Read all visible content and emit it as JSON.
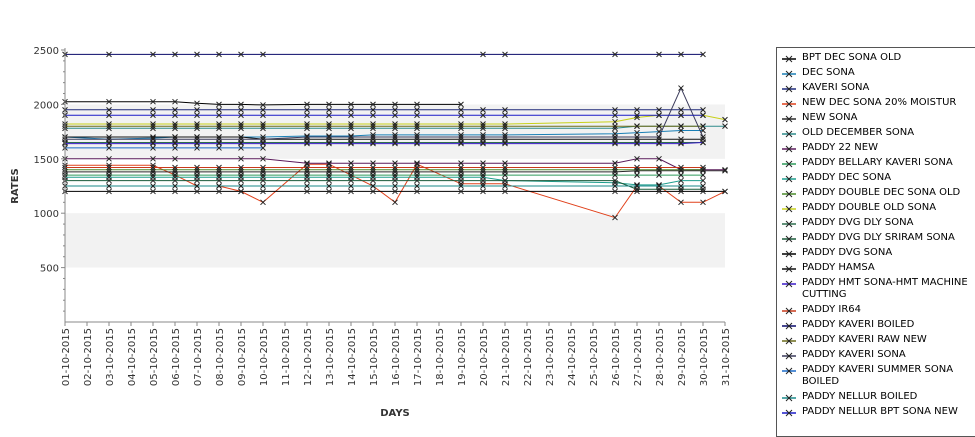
{
  "chart_data": {
    "type": "line",
    "xlabel": "DAYS",
    "ylabel": "RATES",
    "ylim": [
      0,
      2500
    ],
    "yticks": [
      500,
      1000,
      1500,
      2000,
      2500
    ],
    "bands": [
      [
        500,
        1000
      ],
      [
        1500,
        2000
      ]
    ],
    "marker": "x",
    "x": [
      "01-10-2015",
      "02-10-2015",
      "03-10-2015",
      "04-10-2015",
      "05-10-2015",
      "06-10-2015",
      "07-10-2015",
      "08-10-2015",
      "09-10-2015",
      "10-10-2015",
      "11-10-2015",
      "12-10-2015",
      "13-10-2015",
      "14-10-2015",
      "15-10-2015",
      "16-10-2015",
      "17-10-2015",
      "18-10-2015",
      "19-10-2015",
      "20-10-2015",
      "21-10-2015",
      "22-10-2015",
      "23-10-2015",
      "24-10-2015",
      "25-10-2015",
      "26-10-2015",
      "27-10-2015",
      "28-10-2015",
      "29-10-2015",
      "30-10-2015",
      "31-10-2015"
    ],
    "series": [
      {
        "name": "BPT DEC SONA OLD",
        "color": "#000000",
        "values": [
          2025,
          null,
          2025,
          null,
          2025,
          2025,
          2010,
          2000,
          2000,
          1995,
          null,
          2000,
          2000,
          2000,
          2000,
          2000,
          2000,
          null,
          2000,
          null,
          null,
          null,
          null,
          null,
          null,
          null,
          null,
          null,
          null,
          null,
          null
        ]
      },
      {
        "name": "DEC SONA",
        "color": "#1a7fb5",
        "values": [
          1700,
          null,
          1680,
          null,
          1690,
          1700,
          1700,
          1700,
          1700,
          1700,
          null,
          1710,
          1710,
          1710,
          1720,
          1720,
          1720,
          null,
          1720,
          1720,
          1720,
          null,
          null,
          null,
          null,
          1730,
          1740,
          1750,
          1760,
          1760,
          null
        ]
      },
      {
        "name": "KAVERI SONA",
        "color": "#1f2a7a",
        "values": [
          1950,
          null,
          1950,
          null,
          1950,
          1950,
          1950,
          1950,
          1950,
          1950,
          null,
          1950,
          1950,
          1950,
          1950,
          1950,
          1950,
          null,
          1950,
          1950,
          1950,
          null,
          null,
          null,
          null,
          1950,
          1950,
          1950,
          1950,
          1950,
          null
        ]
      },
      {
        "name": "NEW DEC SONA 20% MOISTUR",
        "color": "#e0401a",
        "values": [
          1440,
          null,
          1440,
          null,
          1440,
          1350,
          1250,
          1250,
          1200,
          1100,
          null,
          1450,
          1450,
          1350,
          1250,
          1100,
          1450,
          null,
          1270,
          1270,
          1270,
          null,
          null,
          null,
          null,
          960,
          1250,
          1250,
          1100,
          1100,
          1200
        ]
      },
      {
        "name": "NEW SONA",
        "color": "#2a2a2a",
        "values": [
          1380,
          null,
          1380,
          null,
          1380,
          1380,
          1380,
          1380,
          1380,
          1380,
          null,
          1380,
          1380,
          1380,
          1380,
          1380,
          1380,
          null,
          1380,
          1380,
          1380,
          null,
          null,
          null,
          null,
          1380,
          1390,
          1390,
          1390,
          1390,
          1390
        ]
      },
      {
        "name": "OLD DECEMBER SONA",
        "color": "#2e8b8b",
        "values": [
          1780,
          null,
          1780,
          null,
          1780,
          1780,
          1780,
          1780,
          1780,
          1780,
          null,
          1780,
          1780,
          1780,
          1780,
          1780,
          1780,
          null,
          1780,
          1780,
          1780,
          null,
          null,
          null,
          null,
          1780,
          1800,
          1800,
          1800,
          1800,
          1800
        ]
      },
      {
        "name": "PADDY 22 NEW",
        "color": "#5a1a5a",
        "values": [
          1500,
          null,
          1500,
          null,
          1500,
          1500,
          null,
          null,
          1500,
          1500,
          null,
          1460,
          1460,
          1460,
          1460,
          1460,
          1460,
          null,
          1460,
          1460,
          1460,
          null,
          null,
          null,
          null,
          1460,
          1500,
          1500,
          1400,
          1400,
          1400
        ]
      },
      {
        "name": "PADDY BELLARY KAVERI SONA",
        "color": "#2e9b5a",
        "values": [
          1350,
          null,
          1350,
          null,
          1350,
          1350,
          1350,
          1350,
          1350,
          1350,
          null,
          1350,
          1350,
          1350,
          1350,
          1350,
          1350,
          null,
          1350,
          1350,
          1350,
          null,
          null,
          null,
          null,
          1350,
          1350,
          1350,
          1350,
          1350,
          null
        ]
      },
      {
        "name": "PADDY DEC SONA",
        "color": "#1e9e8e",
        "values": [
          1330,
          null,
          1330,
          null,
          1330,
          1330,
          1330,
          1330,
          1330,
          1330,
          null,
          1330,
          1330,
          1330,
          1330,
          1330,
          1330,
          null,
          1330,
          1330,
          1300,
          null,
          null,
          null,
          null,
          1280,
          1260,
          1260,
          1300,
          1300,
          null
        ]
      },
      {
        "name": "PADDY DOUBLE DEC SONA OLD",
        "color": "#4a8a2a",
        "values": [
          1400,
          null,
          1400,
          null,
          1400,
          1400,
          1400,
          1400,
          1400,
          1400,
          null,
          1400,
          1400,
          1400,
          1400,
          1400,
          1400,
          null,
          1400,
          1400,
          1400,
          null,
          null,
          null,
          null,
          1400,
          1400,
          1400,
          1400,
          1400,
          null
        ]
      },
      {
        "name": "PADDY DOUBLE OLD SONA",
        "color": "#c8d01a",
        "values": [
          1820,
          null,
          1820,
          null,
          1820,
          1820,
          1820,
          1820,
          1820,
          1820,
          null,
          1820,
          1820,
          1820,
          1820,
          1820,
          1820,
          null,
          1820,
          1820,
          1820,
          null,
          null,
          null,
          null,
          1840,
          1880,
          1900,
          1900,
          1900,
          1860
        ]
      },
      {
        "name": "PADDY DVG DLY SONA",
        "color": "#2e6e4e",
        "values": [
          1650,
          null,
          1650,
          null,
          1650,
          1650,
          1650,
          1650,
          1650,
          1650,
          null,
          1650,
          1650,
          1650,
          1650,
          1650,
          1650,
          null,
          1650,
          1650,
          1650,
          null,
          null,
          null,
          null,
          1650,
          1650,
          1650,
          1650,
          1650,
          null
        ]
      },
      {
        "name": "PADDY DVG DLY SRIRAM SONA",
        "color": "#1a5a3a",
        "values": [
          1300,
          null,
          1300,
          null,
          1300,
          1300,
          1300,
          1300,
          1300,
          1300,
          null,
          1300,
          1300,
          1300,
          1300,
          1300,
          1300,
          null,
          1300,
          1300,
          1300,
          null,
          null,
          null,
          null,
          1300,
          1220,
          1220,
          1220,
          1220,
          null
        ]
      },
      {
        "name": "PADDY DVG SONA",
        "color": "#000000",
        "values": [
          1200,
          null,
          1200,
          null,
          1200,
          1200,
          1200,
          1200,
          1200,
          1200,
          null,
          1200,
          1200,
          1200,
          1200,
          1200,
          1200,
          null,
          1200,
          1200,
          1200,
          null,
          null,
          null,
          null,
          1200,
          1200,
          1200,
          1200,
          1200,
          1200
        ]
      },
      {
        "name": "PADDY HAMSA",
        "color": "#111111",
        "values": [
          1700,
          null,
          1700,
          null,
          1700,
          1700,
          1700,
          1700,
          1700,
          1680,
          null,
          1680,
          1680,
          1680,
          1680,
          1680,
          1680,
          null,
          1680,
          1680,
          1680,
          null,
          null,
          null,
          null,
          1680,
          1680,
          1680,
          1680,
          1680,
          null
        ]
      },
      {
        "name": "PADDY HMT SONA-HMT MACHINE CUTTING",
        "color": "#3a1ac8",
        "values": [
          1640,
          null,
          1640,
          null,
          1640,
          1640,
          1640,
          1640,
          1640,
          1640,
          null,
          1640,
          1640,
          1640,
          1640,
          1640,
          1640,
          null,
          1640,
          1640,
          1640,
          null,
          null,
          null,
          null,
          1640,
          1640,
          1640,
          1640,
          1650,
          null
        ]
      },
      {
        "name": "PADDY IR64",
        "color": "#c83a1a",
        "values": [
          1420,
          null,
          1420,
          null,
          1420,
          1420,
          1420,
          1420,
          1420,
          1420,
          null,
          1420,
          1420,
          1420,
          1420,
          1420,
          1420,
          null,
          1420,
          1420,
          1420,
          null,
          null,
          null,
          null,
          1420,
          1420,
          1420,
          1420,
          1420,
          null
        ]
      },
      {
        "name": "PADDY KAVERI BOILED",
        "color": "#0a0a6a",
        "values": [
          2460,
          null,
          2460,
          null,
          2460,
          2460,
          2460,
          2460,
          2460,
          2460,
          null,
          null,
          null,
          null,
          null,
          null,
          null,
          null,
          null,
          2460,
          2460,
          null,
          null,
          null,
          null,
          2460,
          null,
          2460,
          2460,
          2460,
          null
        ]
      },
      {
        "name": "PADDY KAVERI RAW NEW",
        "color": "#6a6a1a",
        "values": [
          1800,
          null,
          1800,
          null,
          1800,
          1800,
          1800,
          1800,
          1800,
          1800,
          null,
          1800,
          1800,
          1800,
          1800,
          1800,
          1800,
          null,
          1800,
          1800,
          1800,
          null,
          null,
          null,
          null,
          1800,
          1800,
          1800,
          1800,
          1800,
          null
        ]
      },
      {
        "name": "PADDY KAVERI SONA",
        "color": "#3a3a5a",
        "values": [
          1680,
          null,
          1680,
          null,
          1680,
          1680,
          1680,
          1680,
          1680,
          1680,
          null,
          1700,
          1700,
          1700,
          1700,
          1700,
          1700,
          null,
          1700,
          1700,
          1700,
          null,
          null,
          null,
          null,
          1700,
          1700,
          1700,
          2150,
          1700,
          null
        ]
      },
      {
        "name": "PADDY KAVERI SUMMER SONA BOILED",
        "color": "#1a6ac8",
        "values": [
          1600,
          null,
          1600,
          null,
          1600,
          1600,
          1600,
          1600,
          1600,
          1600,
          null,
          null,
          null,
          null,
          null,
          null,
          null,
          null,
          null,
          null,
          null,
          null,
          null,
          null,
          null,
          null,
          null,
          null,
          null,
          null,
          null
        ]
      },
      {
        "name": "PADDY NELLUR BOILED",
        "color": "#1a8a8a",
        "values": [
          1250,
          null,
          1250,
          null,
          1250,
          1250,
          1250,
          1250,
          1250,
          1250,
          null,
          1250,
          1250,
          1250,
          1250,
          1250,
          1250,
          null,
          1250,
          1250,
          1250,
          null,
          null,
          null,
          null,
          1250,
          1250,
          1250,
          1250,
          1250,
          null
        ]
      },
      {
        "name": "PADDY NELLUR BPT SONA NEW",
        "color": "#1a1ac8",
        "values": [
          1900,
          null,
          1900,
          null,
          1900,
          1900,
          1900,
          1900,
          1900,
          1900,
          null,
          1900,
          1900,
          1900,
          1900,
          1900,
          1900,
          null,
          1900,
          1900,
          1900,
          null,
          null,
          null,
          null,
          1900,
          1900,
          1900,
          1900,
          1900,
          null
        ]
      }
    ]
  }
}
